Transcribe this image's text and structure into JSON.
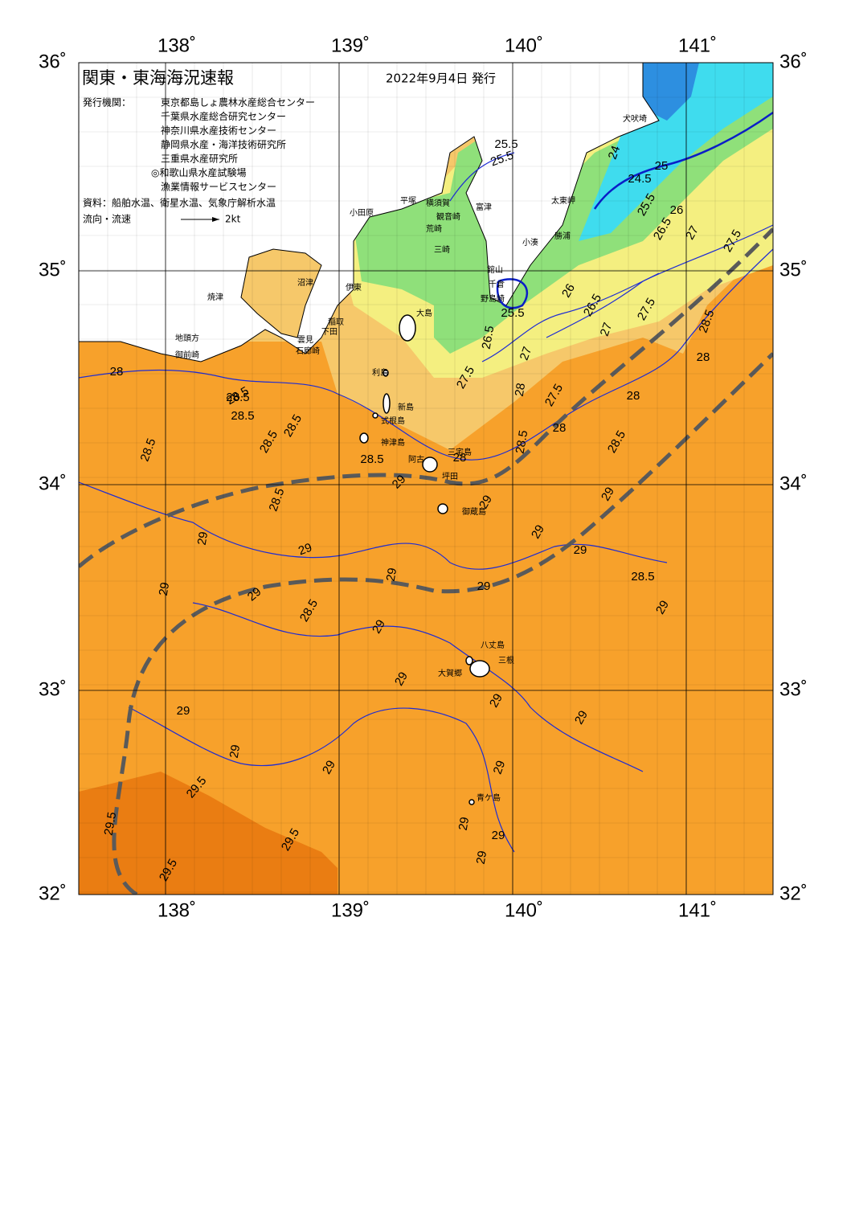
{
  "header": {
    "title": "関東・東海海況速報",
    "date": "2022年9月4日 発行"
  },
  "issuers": {
    "label": "発行機関：",
    "names": [
      "東京都島しょ農林水産総合センター",
      "千葉県水産総合研究センター",
      "神奈川県水産技術センター",
      "静岡県水産・海洋技術研究所",
      "三重県水産研究所",
      "◎和歌山県水産試験場",
      "漁業情報サービスセンター"
    ]
  },
  "source": "資料：船舶水温、衛星水温、気象庁解析水温",
  "legend": {
    "label": "流向・流速",
    "scale": "2kt"
  },
  "axes": {
    "lon": [
      "138˚",
      "139˚",
      "140˚",
      "141˚"
    ],
    "lat": [
      "36˚",
      "35˚",
      "34˚",
      "33˚",
      "32˚"
    ]
  },
  "places": [
    "焼津",
    "沼津",
    "伊東",
    "小田原",
    "平塚",
    "横須賀",
    "観音崎",
    "荒崎",
    "三崎",
    "富津",
    "館山",
    "千倉",
    "野島崎",
    "小湊",
    "勝浦",
    "太東岬",
    "犬吠埼",
    "地頭方",
    "御前崎",
    "雲見",
    "下田",
    "石廊崎",
    "稲取",
    "大島",
    "利島",
    "新島",
    "式根島",
    "神津島",
    "阿古",
    "三宅島",
    "坪田",
    "御蔵島",
    "八丈島",
    "三根",
    "大賀郷",
    "青ケ島"
  ],
  "contour_labels": [
    "28",
    "28.5",
    "28.5",
    "28.5",
    "28.5",
    "28.5",
    "28.5",
    "28.5",
    "28.5",
    "28.5",
    "28.5",
    "28.5",
    "28.5",
    "28.5",
    "28",
    "28",
    "28",
    "28",
    "28",
    "29",
    "29",
    "29",
    "29",
    "29",
    "29",
    "29",
    "29",
    "29",
    "29",
    "29",
    "29",
    "29",
    "29",
    "29",
    "29",
    "29",
    "29",
    "29",
    "29",
    "29",
    "29",
    "29",
    "29.5",
    "29.5",
    "29.5",
    "29.5",
    "25.5",
    "25.5",
    "24",
    "24.5",
    "25",
    "25.5",
    "26",
    "26.5",
    "27",
    "27.5",
    "26",
    "26.5",
    "27.5",
    "27",
    "25.5",
    "26.5",
    "27.5",
    "27",
    "27.5"
  ]
}
